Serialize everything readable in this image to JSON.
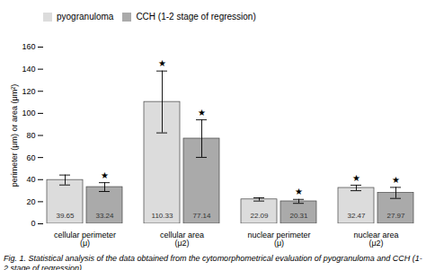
{
  "chart_data": {
    "type": "bar",
    "categories": [
      "cellular perimeter (μ)",
      "cellular area (μ2)",
      "nuclear perimeter (μ)",
      "nuclear area (μ2)"
    ],
    "series": [
      {
        "name": "pyogranuloma",
        "color": "#dcdcdc",
        "values": [
          39.65,
          110.33,
          22.09,
          32.47
        ],
        "errors": [
          4.5,
          28.0,
          1.5,
          2.5
        ]
      },
      {
        "name": "CCH (1-2 stage of regression)",
        "color": "#aaaaaa",
        "values": [
          33.24,
          77.14,
          20.31,
          27.97
        ],
        "errors": [
          4.0,
          17.0,
          1.8,
          5.0
        ]
      }
    ],
    "ylabel": "perimeter (μm) or area (μm²)",
    "ylim": [
      0,
      160
    ],
    "yticks": [
      0,
      20,
      40,
      60,
      80,
      100,
      120,
      140,
      160
    ],
    "data_labels": true,
    "legend": "upper left",
    "grid": false,
    "annotations": [
      {
        "text": "★",
        "series": "CCH (1-2 stage of regression)",
        "category": "cellular perimeter (μ)"
      },
      {
        "text": "★",
        "series": "CCH (1-2 stage of regression)",
        "category": "cellular area (μ2)"
      },
      {
        "text": "★",
        "series": "CCH (1-2 stage of regression)",
        "category": "nuclear perimeter (μ)"
      },
      {
        "text": "★",
        "series": "CCH (1-2 stage of regression)",
        "category": "nuclear area (μ2)"
      },
      {
        "text": "★",
        "series": "pyogranuloma",
        "category": "cellular area (μ2)"
      },
      {
        "text": "★",
        "series": "pyogranuloma",
        "category": "nuclear area (μ2)"
      }
    ],
    "caption": "Fig. 1. Statistical analysis of the data obtained from the cytomorphometrical evaluation of pyogranuloma and CCH (1-2 stage of regression)"
  }
}
